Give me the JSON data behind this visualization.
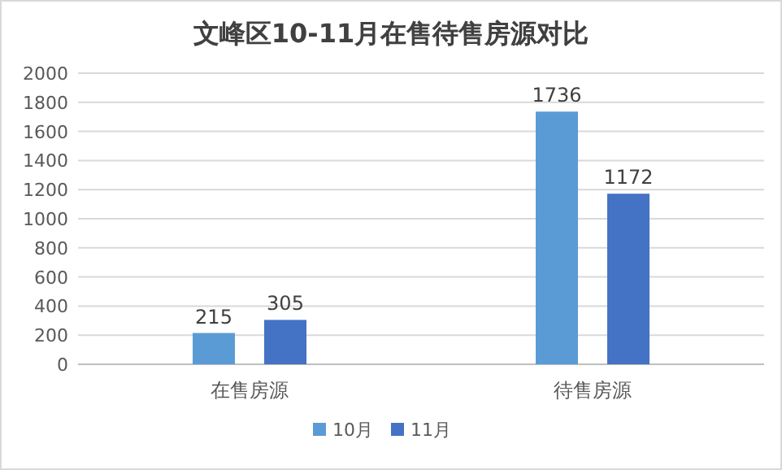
{
  "chart_data": {
    "type": "bar",
    "title": "文峰区10-11月在售待售房源对比",
    "categories": [
      "在售房源",
      "待售房源"
    ],
    "series": [
      {
        "name": "10月",
        "color": "#5b9bd5",
        "values": [
          215,
          1736
        ]
      },
      {
        "name": "11月",
        "color": "#4472c4",
        "values": [
          305,
          1172
        ]
      }
    ],
    "ylim": [
      0,
      2000
    ],
    "yticks": [
      0,
      200,
      400,
      600,
      800,
      1000,
      1200,
      1400,
      1600,
      1800,
      2000
    ],
    "grid": "y",
    "legend": "bottom",
    "data_labels": true
  }
}
